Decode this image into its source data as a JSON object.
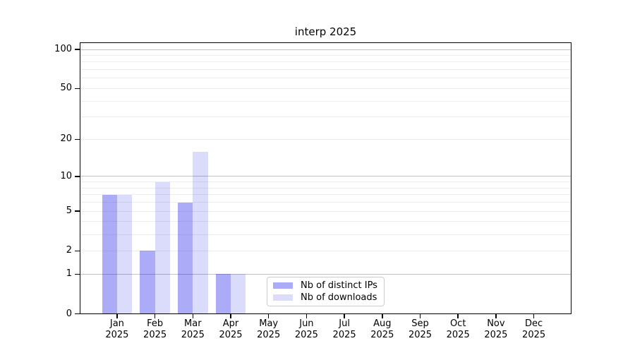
{
  "title": "interp 2025",
  "legend": {
    "items": [
      {
        "label": "Nb of distinct IPs",
        "color": "rgba(0,0,230,0.33)"
      },
      {
        "label": "Nb of downloads",
        "color": "rgba(0,0,230,0.14)"
      }
    ]
  },
  "y_axis": {
    "tick_labels": [
      "0",
      "1",
      "2",
      "5",
      "10",
      "20",
      "50",
      "100"
    ]
  },
  "x_axis": {
    "year": "2025",
    "months": [
      "Jan",
      "Feb",
      "Mar",
      "Apr",
      "May",
      "Jun",
      "Jul",
      "Aug",
      "Sep",
      "Oct",
      "Nov",
      "Dec"
    ]
  },
  "chart_data": {
    "type": "bar",
    "title": "interp 2025",
    "categories": [
      "Jan 2025",
      "Feb 2025",
      "Mar 2025",
      "Apr 2025",
      "May 2025",
      "Jun 2025",
      "Jul 2025",
      "Aug 2025",
      "Sep 2025",
      "Oct 2025",
      "Nov 2025",
      "Dec 2025"
    ],
    "series": [
      {
        "name": "Nb of distinct IPs",
        "color": "rgba(0,0,230,0.33)",
        "values": [
          7,
          2,
          6,
          1,
          0,
          0,
          0,
          0,
          0,
          0,
          0,
          0
        ]
      },
      {
        "name": "Nb of downloads",
        "color": "rgba(0,0,230,0.14)",
        "values": [
          7,
          9,
          16,
          1,
          0,
          0,
          0,
          0,
          0,
          0,
          0,
          0
        ]
      }
    ],
    "xlabel": "",
    "ylabel": "",
    "yscale": "log1p",
    "y_ticks": [
      0,
      1,
      2,
      5,
      10,
      20,
      50,
      100
    ],
    "y_gridlines_major": [
      1,
      10,
      100
    ],
    "y_gridlines_minor": [
      2,
      3,
      4,
      5,
      6,
      7,
      8,
      9,
      20,
      30,
      40,
      50,
      60,
      70,
      80,
      90
    ],
    "ylim": [
      0,
      113
    ],
    "grid": true,
    "legend_position": "lower center-left inside plot",
    "background_color": "#ffffff",
    "text_color": "#000000"
  }
}
